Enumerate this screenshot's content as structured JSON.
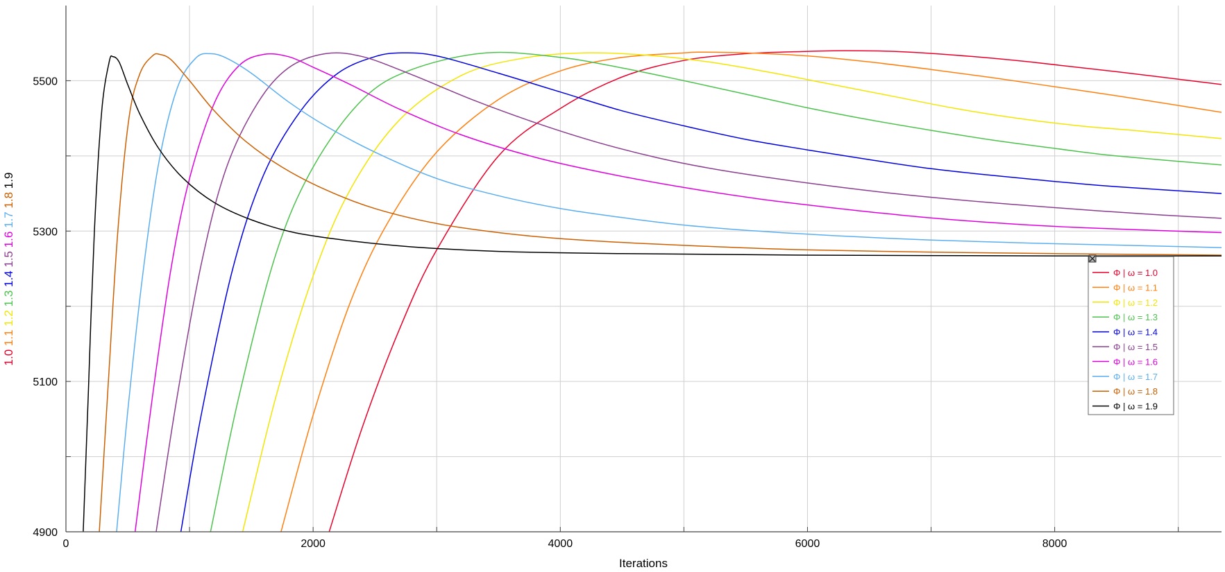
{
  "chart_data": {
    "type": "line",
    "xlabel": "Iterations",
    "xlim": [
      0,
      9350
    ],
    "ylim": [
      4900,
      5600
    ],
    "x_ticks": [
      0,
      2000,
      4000,
      6000,
      8000
    ],
    "x_minor_ticks": [
      1000,
      3000,
      5000,
      7000,
      9000
    ],
    "y_ticks": [
      4900,
      5100,
      5300,
      5500
    ],
    "y_minor_ticks": [
      5000,
      5200,
      5400
    ],
    "grid": true,
    "legend_position": "right",
    "ylabel_parts": [
      {
        "text": "1.0",
        "color": "#e8002a"
      },
      {
        "text": "1.1",
        "color": "#ff7f0e"
      },
      {
        "text": "1.2",
        "color": "#f2e600"
      },
      {
        "text": "1.3",
        "color": "#4cc24c"
      },
      {
        "text": "1.4",
        "color": "#0000e0"
      },
      {
        "text": "1.5",
        "color": "#8a3d8f"
      },
      {
        "text": "1.6",
        "color": "#dd00dd"
      },
      {
        "text": "1.7",
        "color": "#5aaef0"
      },
      {
        "text": "1.8",
        "color": "#cc5f00"
      },
      {
        "text": "1.9",
        "color": "#000000"
      }
    ],
    "series": [
      {
        "name": "Φ | ω = 1.0",
        "color": "#e8002a",
        "x": [
          2130,
          2400,
          2700,
          3000,
          3500,
          4000,
          4500,
          5000,
          5500,
          6000,
          6300,
          6700,
          7200,
          7800,
          8500,
          9350
        ],
        "y": [
          4900,
          5040,
          5170,
          5275,
          5400,
          5463,
          5505,
          5527,
          5536,
          5539,
          5540,
          5539,
          5534,
          5525,
          5512,
          5495
        ]
      },
      {
        "name": "Φ | ω = 1.1",
        "color": "#ff7f0e",
        "x": [
          1740,
          2000,
          2300,
          2600,
          3000,
          3500,
          4000,
          4500,
          5000,
          5140,
          5500,
          6000,
          6500,
          7000,
          7500,
          8000,
          8500,
          9350
        ],
        "y": [
          4900,
          5055,
          5205,
          5310,
          5405,
          5475,
          5513,
          5531,
          5537,
          5538,
          5537,
          5533,
          5525,
          5515,
          5504,
          5492,
          5480,
          5458
        ]
      },
      {
        "name": "Φ | ω = 1.2",
        "color": "#f2e600",
        "x": [
          1430,
          1700,
          2000,
          2300,
          2700,
          3200,
          3700,
          4200,
          4700,
          5200,
          5700,
          6200,
          6700,
          7200,
          7700,
          8200,
          8700,
          9350
        ],
        "y": [
          4900,
          5080,
          5240,
          5355,
          5448,
          5507,
          5530,
          5537,
          5534,
          5525,
          5511,
          5495,
          5479,
          5463,
          5450,
          5440,
          5433,
          5423
        ]
      },
      {
        "name": "Φ | ω = 1.3",
        "color": "#4cc24c",
        "x": [
          1170,
          1400,
          1700,
          2000,
          2400,
          2800,
          3400,
          4000,
          4500,
          5000,
          5500,
          6000,
          6500,
          7000,
          7500,
          8000,
          8500,
          9350
        ],
        "y": [
          4900,
          5080,
          5270,
          5385,
          5475,
          5515,
          5537,
          5531,
          5517,
          5500,
          5482,
          5464,
          5448,
          5434,
          5421,
          5410,
          5400,
          5388
        ]
      },
      {
        "name": "Φ | ω = 1.4",
        "color": "#0000e0",
        "x": [
          930,
          1100,
          1350,
          1600,
          1900,
          2200,
          2500,
          2720,
          3000,
          3500,
          4000,
          4500,
          5000,
          5500,
          6000,
          6500,
          7000,
          7500,
          8000,
          8500,
          9350
        ],
        "y": [
          4900,
          5060,
          5250,
          5375,
          5460,
          5510,
          5532,
          5537,
          5533,
          5510,
          5485,
          5460,
          5440,
          5422,
          5408,
          5395,
          5383,
          5374,
          5366,
          5359,
          5350
        ]
      },
      {
        "name": "Φ | ω = 1.5",
        "color": "#8a3d8f",
        "x": [
          730,
          900,
          1100,
          1300,
          1550,
          1800,
          2100,
          2400,
          2800,
          3300,
          3800,
          4300,
          4800,
          5300,
          6000,
          6700,
          7400,
          8100,
          8800,
          9350
        ],
        "y": [
          4900,
          5080,
          5260,
          5385,
          5470,
          5517,
          5536,
          5532,
          5508,
          5474,
          5444,
          5418,
          5397,
          5381,
          5364,
          5350,
          5339,
          5330,
          5322,
          5317
        ]
      },
      {
        "name": "Φ | ω = 1.6",
        "color": "#dd00dd",
        "x": [
          560,
          700,
          850,
          1000,
          1200,
          1400,
          1600,
          1800,
          2000,
          2300,
          2700,
          3200,
          3800,
          4400,
          5000,
          5600,
          6200,
          6900,
          7600,
          8300,
          9350
        ],
        "y": [
          4900,
          5080,
          5250,
          5370,
          5470,
          5520,
          5535,
          5532,
          5518,
          5495,
          5462,
          5428,
          5398,
          5376,
          5358,
          5343,
          5331,
          5319,
          5310,
          5304,
          5298
        ]
      },
      {
        "name": "Φ | ω = 1.7",
        "color": "#5aaef0",
        "x": [
          410,
          500,
          620,
          750,
          900,
          1050,
          1170,
          1300,
          1500,
          1800,
          2100,
          2500,
          3000,
          3500,
          4000,
          4500,
          5000,
          5600,
          6200,
          7000,
          7800,
          8600,
          9350
        ],
        "y": [
          4900,
          5060,
          5240,
          5390,
          5490,
          5530,
          5536,
          5530,
          5510,
          5472,
          5440,
          5405,
          5370,
          5347,
          5330,
          5318,
          5308,
          5300,
          5294,
          5288,
          5284,
          5281,
          5278
        ]
      },
      {
        "name": "Φ | ω = 1.8",
        "color": "#cc5f00",
        "x": [
          270,
          340,
          420,
          510,
          600,
          700,
          760,
          850,
          1000,
          1200,
          1450,
          1750,
          2100,
          2500,
          3000,
          3500,
          4000,
          4600,
          5300,
          6000,
          7000,
          8000,
          9350
        ],
        "y": [
          4900,
          5090,
          5300,
          5450,
          5510,
          5533,
          5535,
          5528,
          5500,
          5460,
          5420,
          5385,
          5355,
          5330,
          5310,
          5298,
          5290,
          5284,
          5279,
          5275,
          5272,
          5270,
          5268
        ]
      },
      {
        "name": "Φ | ω = 1.9",
        "color": "#000000",
        "x": [
          140,
          180,
          230,
          290,
          350,
          380,
          430,
          500,
          600,
          750,
          950,
          1200,
          1500,
          1850,
          2300,
          2800,
          3500,
          4500,
          6000,
          8000,
          9350
        ],
        "y": [
          4900,
          5080,
          5300,
          5460,
          5525,
          5532,
          5525,
          5495,
          5455,
          5410,
          5370,
          5338,
          5315,
          5298,
          5287,
          5279,
          5273,
          5270,
          5268,
          5267,
          5267
        ]
      }
    ]
  }
}
